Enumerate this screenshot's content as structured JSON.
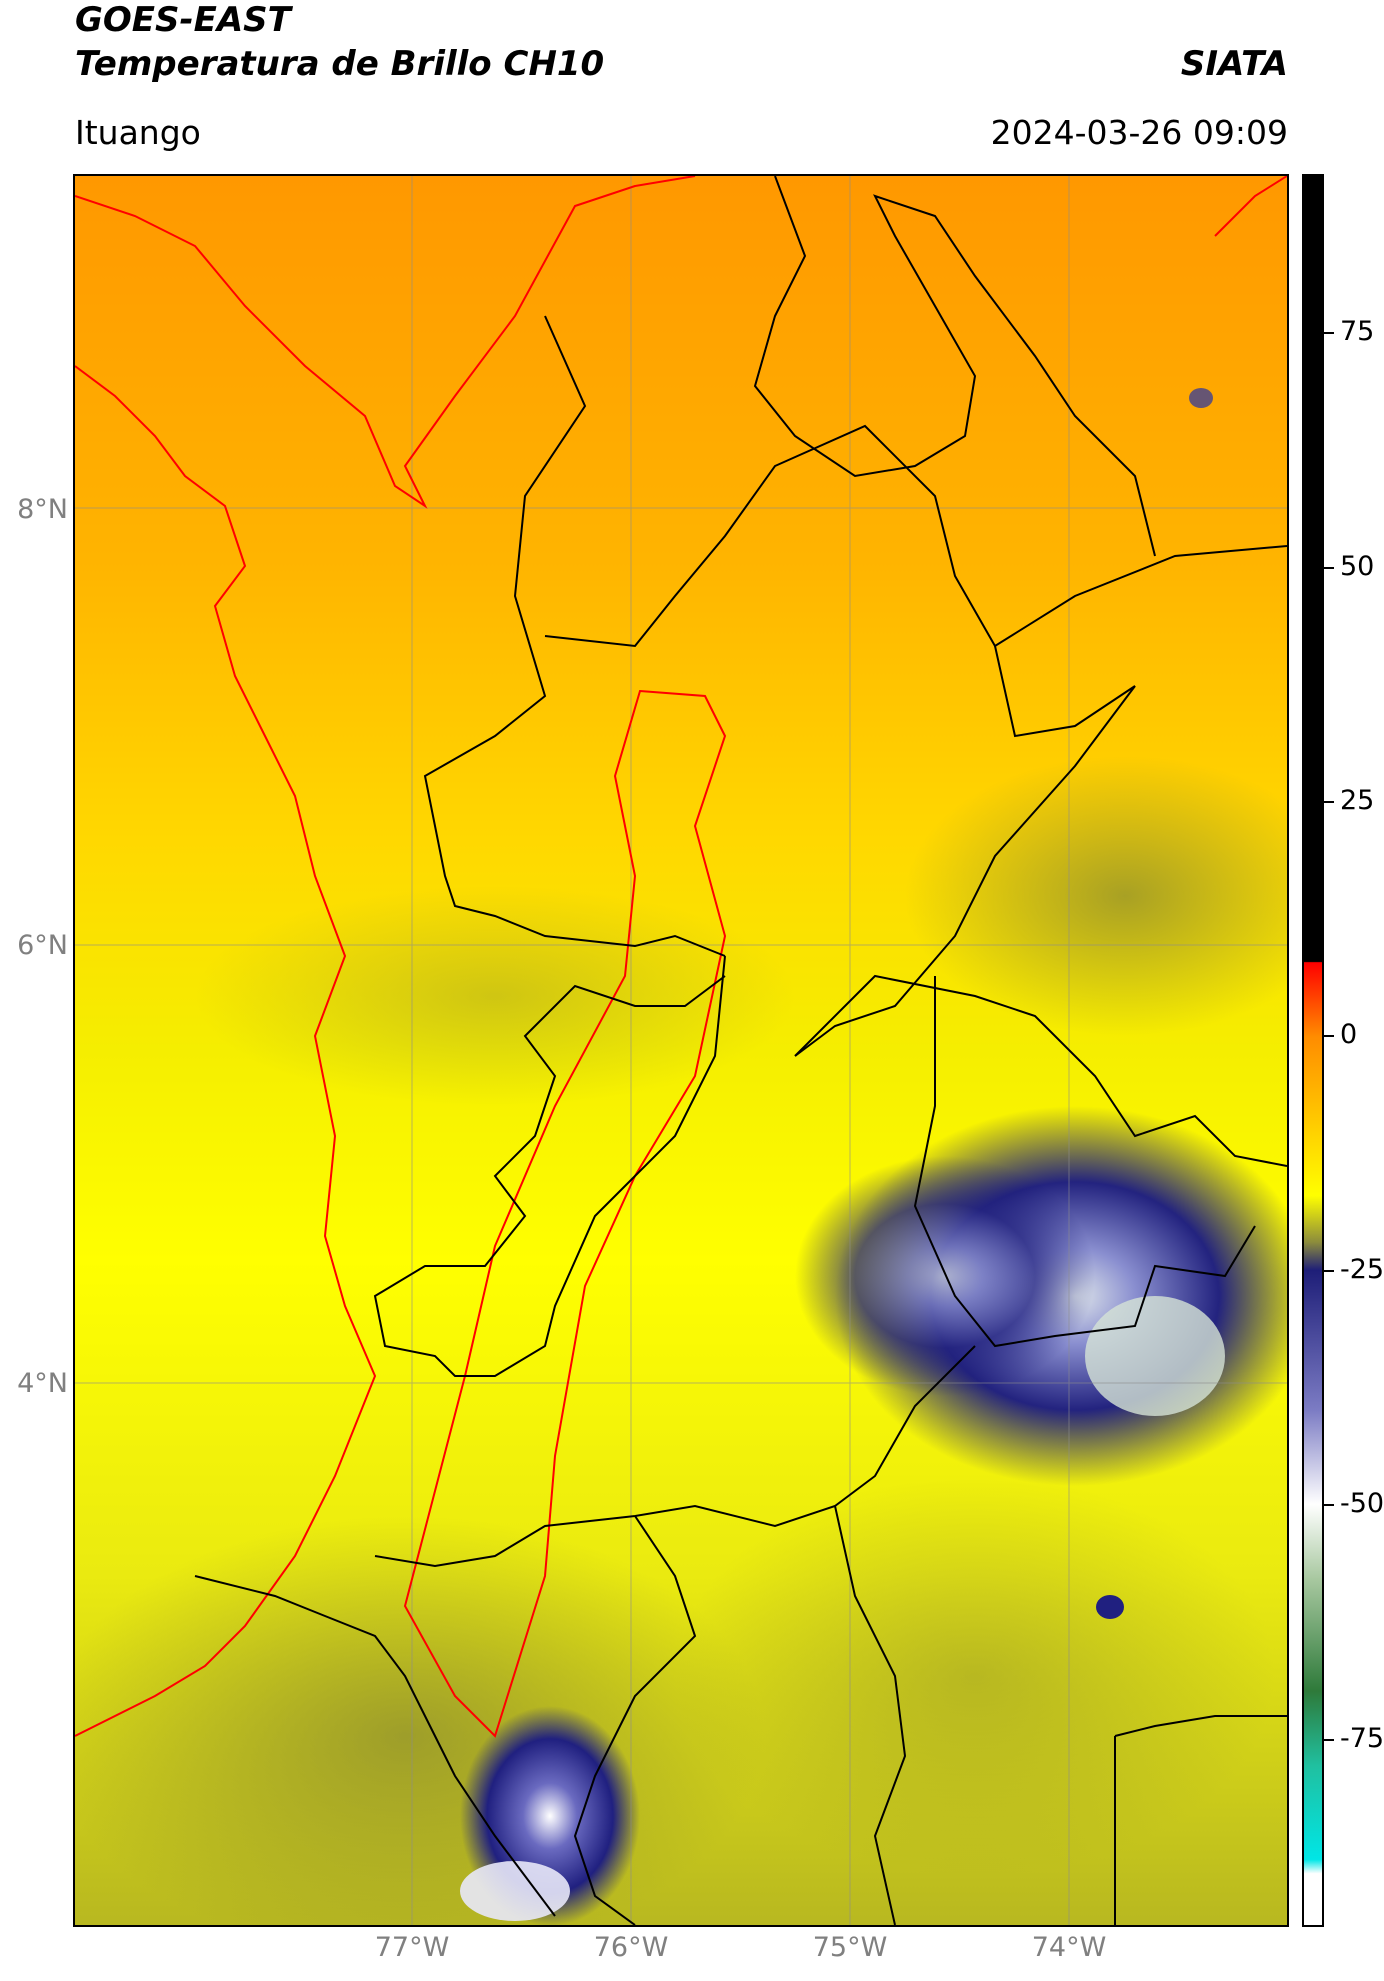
{
  "header": {
    "satellite": "GOES-EAST",
    "product": "Temperatura de Brillo CH10",
    "organization": "SIATA",
    "location": "Ituango",
    "timestamp": "2024-03-26 09:09"
  },
  "map": {
    "lat_labels": [
      "8°N",
      "6°N",
      "4°N"
    ],
    "lon_labels": [
      "77°W",
      "76°W",
      "75°W",
      "74°W"
    ],
    "colors": {
      "warm_orange": "#ff9a00",
      "yellow": "#ffff00",
      "olive": "#9a9a2a",
      "cold_blue": "#1a1a7a",
      "coldest_white": "#ffffff",
      "boundary_black": "#000000",
      "coast_red": "#ff0000"
    }
  },
  "colorbar": {
    "tick_labels": [
      "75",
      "50",
      "25",
      "0",
      "-25",
      "-50",
      "-75"
    ],
    "tick_values": [
      75,
      50,
      25,
      0,
      -25,
      -50,
      -75
    ],
    "range": [
      -95,
      92
    ]
  }
}
